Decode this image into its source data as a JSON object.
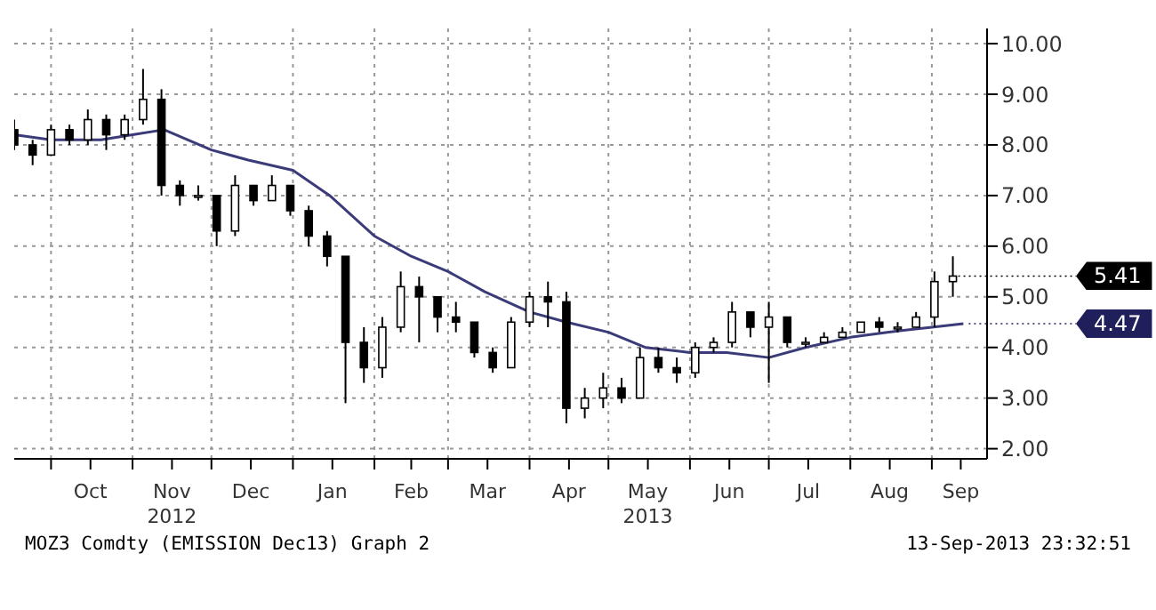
{
  "chart_data": {
    "type": "candlestick",
    "color": "#000000",
    "x": [
      "2012-09-17",
      "2012-09-24",
      "2012-10-01",
      "2012-10-08",
      "2012-10-15",
      "2012-10-22",
      "2012-10-29",
      "2012-11-05",
      "2012-11-12",
      "2012-11-19",
      "2012-11-26",
      "2012-12-03",
      "2012-12-10",
      "2012-12-17",
      "2012-12-24",
      "2012-12-31",
      "2013-01-07",
      "2013-01-14",
      "2013-01-21",
      "2013-01-28",
      "2013-02-04",
      "2013-02-11",
      "2013-02-18",
      "2013-02-25",
      "2013-03-04",
      "2013-03-11",
      "2013-03-18",
      "2013-03-25",
      "2013-04-01",
      "2013-04-08",
      "2013-04-15",
      "2013-04-22",
      "2013-04-29",
      "2013-05-06",
      "2013-05-13",
      "2013-05-20",
      "2013-05-27",
      "2013-06-03",
      "2013-06-10",
      "2013-06-17",
      "2013-06-24",
      "2013-07-01",
      "2013-07-08",
      "2013-07-15",
      "2013-07-22",
      "2013-07-29",
      "2013-08-05",
      "2013-08-12",
      "2013-08-19",
      "2013-08-26",
      "2013-09-02",
      "2013-09-09"
    ],
    "ohlc": [
      [
        8.3,
        8.5,
        7.9,
        8.0
      ],
      [
        8.0,
        8.1,
        7.6,
        7.8
      ],
      [
        7.8,
        8.4,
        7.8,
        8.3
      ],
      [
        8.3,
        8.4,
        8.0,
        8.1
      ],
      [
        8.1,
        8.7,
        8.0,
        8.5
      ],
      [
        8.5,
        8.6,
        7.9,
        8.2
      ],
      [
        8.2,
        8.6,
        8.1,
        8.5
      ],
      [
        8.5,
        9.5,
        8.4,
        8.9
      ],
      [
        8.9,
        9.1,
        7.0,
        7.2
      ],
      [
        7.2,
        7.3,
        6.8,
        7.0
      ],
      [
        7.0,
        7.2,
        6.9,
        7.0
      ],
      [
        7.0,
        7.0,
        6.0,
        6.3
      ],
      [
        6.3,
        7.4,
        6.2,
        7.2
      ],
      [
        7.2,
        7.2,
        6.8,
        6.9
      ],
      [
        6.9,
        7.4,
        6.9,
        7.2
      ],
      [
        7.2,
        7.2,
        6.6,
        6.7
      ],
      [
        6.7,
        6.8,
        6.0,
        6.2
      ],
      [
        6.2,
        6.3,
        5.6,
        5.8
      ],
      [
        5.8,
        5.8,
        2.9,
        4.1
      ],
      [
        4.1,
        4.4,
        3.3,
        3.6
      ],
      [
        3.6,
        4.6,
        3.4,
        4.4
      ],
      [
        4.4,
        5.5,
        4.3,
        5.2
      ],
      [
        5.2,
        5.4,
        4.1,
        5.0
      ],
      [
        5.0,
        5.0,
        4.3,
        4.6
      ],
      [
        4.6,
        4.9,
        4.3,
        4.5
      ],
      [
        4.5,
        4.5,
        3.8,
        3.9
      ],
      [
        3.9,
        4.0,
        3.5,
        3.6
      ],
      [
        3.6,
        4.6,
        3.6,
        4.5
      ],
      [
        4.5,
        5.1,
        4.4,
        5.0
      ],
      [
        5.0,
        5.3,
        4.4,
        4.9
      ],
      [
        4.9,
        5.1,
        2.5,
        2.8
      ],
      [
        2.8,
        3.2,
        2.6,
        3.0
      ],
      [
        3.0,
        3.5,
        2.8,
        3.2
      ],
      [
        3.2,
        3.4,
        2.9,
        3.0
      ],
      [
        3.0,
        4.0,
        3.0,
        3.8
      ],
      [
        3.8,
        4.0,
        3.5,
        3.6
      ],
      [
        3.6,
        3.8,
        3.3,
        3.5
      ],
      [
        3.5,
        4.1,
        3.4,
        4.0
      ],
      [
        4.0,
        4.2,
        3.9,
        4.1
      ],
      [
        4.1,
        4.9,
        4.0,
        4.7
      ],
      [
        4.7,
        4.7,
        4.2,
        4.4
      ],
      [
        4.4,
        4.9,
        3.3,
        4.6
      ],
      [
        4.6,
        4.6,
        4.0,
        4.1
      ],
      [
        4.1,
        4.2,
        4.0,
        4.1
      ],
      [
        4.1,
        4.3,
        4.1,
        4.2
      ],
      [
        4.2,
        4.4,
        4.2,
        4.3
      ],
      [
        4.3,
        4.5,
        4.3,
        4.5
      ],
      [
        4.5,
        4.6,
        4.3,
        4.4
      ],
      [
        4.4,
        4.5,
        4.3,
        4.4
      ],
      [
        4.4,
        4.7,
        4.4,
        4.6
      ],
      [
        4.6,
        5.5,
        4.4,
        5.3
      ],
      [
        5.3,
        5.8,
        5.0,
        5.41
      ]
    ],
    "series": [
      {
        "type": "line",
        "color": "#3b3b7a",
        "x": [
          "2012-09-17",
          "2012-10-01",
          "2012-10-20",
          "2012-11-01",
          "2012-11-13",
          "2012-12-01",
          "2012-12-15",
          "2013-01-01",
          "2013-01-15",
          "2013-02-01",
          "2013-02-15",
          "2013-03-01",
          "2013-03-15",
          "2013-04-01",
          "2013-04-15",
          "2013-05-01",
          "2013-05-15",
          "2013-06-01",
          "2013-06-15",
          "2013-07-01",
          "2013-07-15",
          "2013-08-01",
          "2013-08-15",
          "2013-09-01",
          "2013-09-13"
        ],
        "values": [
          8.2,
          8.1,
          8.1,
          8.2,
          8.3,
          7.9,
          7.7,
          7.5,
          7.0,
          6.2,
          5.8,
          5.5,
          5.1,
          4.7,
          4.5,
          4.3,
          4.0,
          3.9,
          3.9,
          3.8,
          4.0,
          4.2,
          4.3,
          4.4,
          4.47
        ]
      }
    ],
    "xlim": [
      "2012-09-17",
      "2013-09-22"
    ],
    "xticks": [
      {
        "value": "2012-10-01",
        "label": null
      },
      {
        "value": "2012-10-16",
        "label": "Oct"
      },
      {
        "value": "2012-11-01",
        "label": null
      },
      {
        "value": "2012-11-16",
        "label": "Nov\n2012"
      },
      {
        "value": "2012-12-01",
        "label": null
      },
      {
        "value": "2012-12-16",
        "label": "Dec"
      },
      {
        "value": "2013-01-01",
        "label": null
      },
      {
        "value": "2013-01-16",
        "label": "Jan"
      },
      {
        "value": "2013-02-01",
        "label": null
      },
      {
        "value": "2013-02-15",
        "label": "Feb"
      },
      {
        "value": "2013-03-01",
        "label": null
      },
      {
        "value": "2013-03-16",
        "label": "Mar"
      },
      {
        "value": "2013-04-01",
        "label": null
      },
      {
        "value": "2013-04-16",
        "label": "Apr"
      },
      {
        "value": "2013-05-01",
        "label": null
      },
      {
        "value": "2013-05-16",
        "label": "May\n2013"
      },
      {
        "value": "2013-06-01",
        "label": null
      },
      {
        "value": "2013-06-16",
        "label": "Jun"
      },
      {
        "value": "2013-07-01",
        "label": null
      },
      {
        "value": "2013-07-16",
        "label": "Jul"
      },
      {
        "value": "2013-08-01",
        "label": null
      },
      {
        "value": "2013-08-16",
        "label": "Aug"
      },
      {
        "value": "2013-09-01",
        "label": null
      },
      {
        "value": "2013-09-12",
        "label": "Sep"
      }
    ],
    "ylim": [
      1.8,
      10.3
    ],
    "yticks": [
      {
        "value": 2,
        "label": "2.00"
      },
      {
        "value": 3,
        "label": "3.00"
      },
      {
        "value": 4,
        "label": "4.00"
      },
      {
        "value": 5,
        "label": "5.00"
      },
      {
        "value": 6,
        "label": "6.00"
      },
      {
        "value": 7,
        "label": "7.00"
      },
      {
        "value": 8,
        "label": "8.00"
      },
      {
        "value": 9,
        "label": "9.00"
      },
      {
        "value": 10,
        "label": "10.00"
      }
    ],
    "grid": true,
    "annotations": [
      {
        "text": "5.41",
        "x": "2013-09-09",
        "y": 5.41
      },
      {
        "text": "4.47",
        "x": "2013-09-13",
        "y": 4.47
      },
      "MOZ3 Comdty (EMISSION Dec13) Graph 2",
      "13-Sep-2013 23:32:51"
    ]
  }
}
